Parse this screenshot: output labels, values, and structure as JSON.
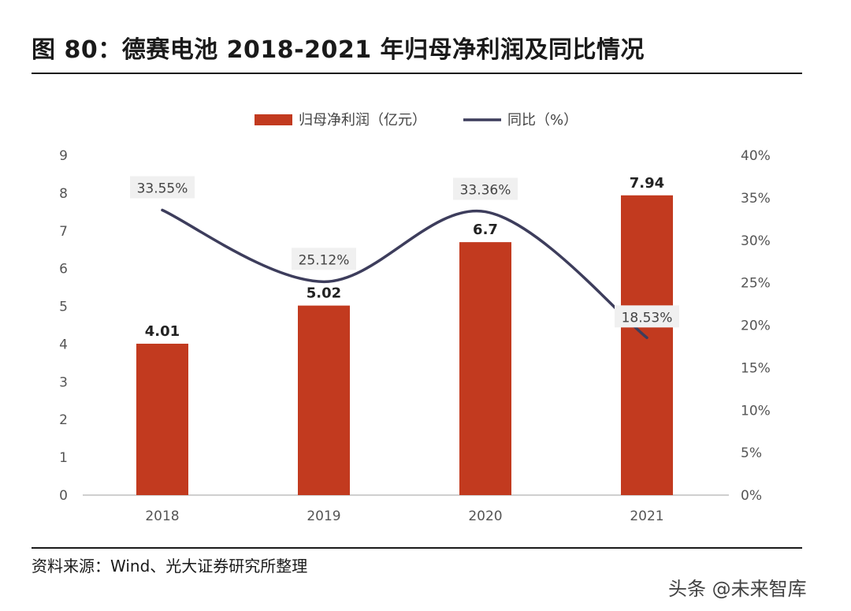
{
  "title": "图 80：德赛电池 2018-2021 年归母净利润及同比情况",
  "source": "资料来源：Wind、光大证券研究所整理",
  "watermark": "头条 @未来智库",
  "colors": {
    "bar": "#C23A1F",
    "line": "#3D3D5C",
    "axis": "#bfbfbf",
    "tick_text": "#555555",
    "label_box": "#f0f0f0"
  },
  "chart_data": {
    "type": "bar",
    "categories": [
      "2018",
      "2019",
      "2020",
      "2021"
    ],
    "series": [
      {
        "name": "归母净利润（亿元）",
        "type": "bar",
        "axis": "left",
        "values": [
          4.01,
          5.02,
          6.7,
          7.94
        ],
        "labels": [
          "4.01",
          "5.02",
          "6.7",
          "7.94"
        ]
      },
      {
        "name": "同比（%）",
        "type": "line",
        "axis": "right",
        "values": [
          33.55,
          25.12,
          33.36,
          18.53
        ],
        "labels": [
          "33.55%",
          "25.12%",
          "33.36%",
          "18.53%"
        ]
      }
    ],
    "y_left": {
      "min": 0,
      "max": 9,
      "ticks": [
        "0",
        "1",
        "2",
        "3",
        "4",
        "5",
        "6",
        "7",
        "8",
        "9"
      ]
    },
    "y_right": {
      "min": 0,
      "max": 40,
      "ticks": [
        "0%",
        "5%",
        "10%",
        "15%",
        "20%",
        "25%",
        "30%",
        "35%",
        "40%"
      ]
    },
    "legend_position": "top-center",
    "grid": false
  }
}
